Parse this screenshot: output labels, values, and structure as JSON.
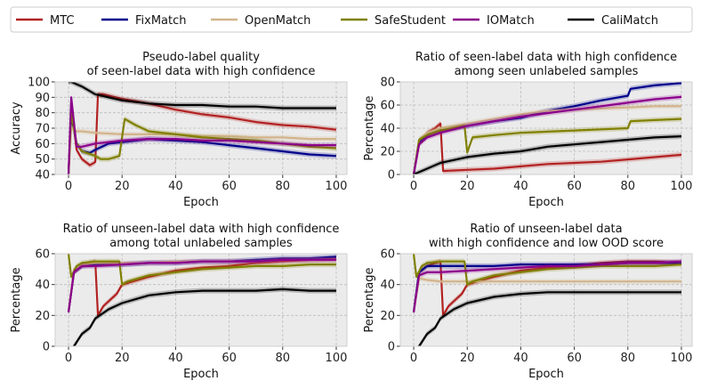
{
  "legend": {
    "position": "top",
    "entries": [
      {
        "name": "MTC",
        "color": "#b22222"
      },
      {
        "name": "FixMatch",
        "color": "#00008b"
      },
      {
        "name": "OpenMatch",
        "color": "#d2b48c"
      },
      {
        "name": "SafeStudent",
        "color": "#808000"
      },
      {
        "name": "IOMatch",
        "color": "#8b008b"
      },
      {
        "name": "CaliMatch",
        "color": "#000000"
      }
    ]
  },
  "chart_data": [
    {
      "type": "line",
      "title_lines": [
        "Pseudo-label quality",
        "of seen-label data with high confidence"
      ],
      "xlabel": "Epoch",
      "ylabel": "Accuracy",
      "xlim": [
        -5,
        104
      ],
      "ylim": [
        40,
        100
      ],
      "xticks": [
        0,
        20,
        40,
        60,
        80,
        100
      ],
      "yticks": [
        40,
        50,
        60,
        70,
        80,
        90,
        100
      ],
      "grid": true,
      "series": [
        {
          "name": "MTC",
          "x": [
            0,
            1,
            3,
            5,
            8,
            10,
            11,
            13,
            20,
            30,
            40,
            50,
            60,
            70,
            80,
            90,
            100
          ],
          "y": [
            40,
            84,
            56,
            50,
            46,
            48,
            92,
            92,
            89,
            86,
            82,
            79,
            77,
            74,
            72,
            71,
            69
          ]
        },
        {
          "name": "FixMatch",
          "x": [
            0,
            1,
            3,
            5,
            8,
            10,
            15,
            20,
            30,
            40,
            50,
            60,
            70,
            80,
            90,
            100
          ],
          "y": [
            40,
            78,
            60,
            55,
            54,
            56,
            60,
            61,
            63,
            62,
            61,
            59,
            57,
            55,
            53,
            52
          ]
        },
        {
          "name": "OpenMatch",
          "x": [
            0,
            1,
            3,
            5,
            10,
            20,
            30,
            40,
            50,
            60,
            70,
            80,
            90,
            100
          ],
          "y": [
            40,
            70,
            68,
            68,
            67,
            66,
            66,
            66,
            65,
            65,
            64,
            64,
            63,
            63
          ]
        },
        {
          "name": "SafeStudent",
          "x": [
            0,
            1,
            3,
            5,
            10,
            12,
            15,
            19,
            21,
            25,
            30,
            40,
            50,
            60,
            70,
            80,
            90,
            100
          ],
          "y": [
            40,
            80,
            60,
            55,
            52,
            50,
            50,
            52,
            76,
            72,
            68,
            66,
            64,
            63,
            62,
            60,
            58,
            57
          ]
        },
        {
          "name": "IOMatch",
          "x": [
            0,
            1,
            3,
            5,
            10,
            20,
            30,
            40,
            50,
            60,
            70,
            80,
            90,
            100
          ],
          "y": [
            40,
            90,
            58,
            58,
            60,
            62,
            63,
            63,
            62,
            62,
            61,
            60,
            59,
            59
          ]
        },
        {
          "name": "CaliMatch",
          "x": [
            0,
            1,
            5,
            10,
            20,
            30,
            40,
            50,
            60,
            70,
            80,
            90,
            100
          ],
          "y": [
            100,
            100,
            97,
            92,
            88,
            86,
            85,
            85,
            84,
            84,
            83,
            83,
            83
          ]
        }
      ]
    },
    {
      "type": "line",
      "title_lines": [
        "Ratio of seen-label data with high confidence",
        "among seen unlabeled samples"
      ],
      "xlabel": "Epoch",
      "ylabel": "Percentage",
      "xlim": [
        -5,
        104
      ],
      "ylim": [
        0,
        80
      ],
      "xticks": [
        0,
        20,
        40,
        60,
        80,
        100
      ],
      "yticks": [
        0,
        20,
        40,
        60,
        80
      ],
      "grid": true,
      "series": [
        {
          "name": "MTC",
          "x": [
            0,
            2,
            5,
            8,
            10,
            11,
            20,
            30,
            40,
            50,
            60,
            70,
            80,
            90,
            100
          ],
          "y": [
            0,
            26,
            36,
            40,
            44,
            3,
            4,
            5,
            7,
            9,
            10,
            11,
            13,
            15,
            17
          ]
        },
        {
          "name": "FixMatch",
          "x": [
            0,
            2,
            5,
            10,
            20,
            30,
            40,
            50,
            60,
            70,
            80,
            81,
            90,
            100
          ],
          "y": [
            0,
            28,
            34,
            38,
            42,
            46,
            49,
            55,
            59,
            64,
            68,
            74,
            77,
            79
          ]
        },
        {
          "name": "OpenMatch",
          "x": [
            0,
            2,
            5,
            10,
            20,
            30,
            40,
            50,
            60,
            70,
            80,
            90,
            100
          ],
          "y": [
            0,
            30,
            36,
            40,
            44,
            48,
            52,
            55,
            56,
            57,
            58,
            59,
            59
          ]
        },
        {
          "name": "SafeStudent",
          "x": [
            0,
            2,
            5,
            10,
            19,
            20,
            22,
            30,
            40,
            50,
            60,
            70,
            80,
            81,
            90,
            100
          ],
          "y": [
            0,
            30,
            34,
            38,
            42,
            19,
            32,
            34,
            36,
            37,
            38,
            39,
            40,
            46,
            47,
            48
          ]
        },
        {
          "name": "IOMatch",
          "x": [
            0,
            2,
            5,
            10,
            20,
            30,
            40,
            50,
            60,
            70,
            80,
            90,
            100
          ],
          "y": [
            0,
            26,
            32,
            36,
            42,
            46,
            50,
            53,
            56,
            59,
            62,
            65,
            67
          ]
        },
        {
          "name": "CaliMatch",
          "x": [
            0,
            5,
            10,
            20,
            30,
            40,
            50,
            60,
            70,
            80,
            90,
            100
          ],
          "y": [
            0,
            5,
            10,
            15,
            18,
            20,
            24,
            26,
            28,
            30,
            32,
            33
          ]
        }
      ]
    },
    {
      "type": "line",
      "title_lines": [
        "Ratio of unseen-label data with high confidence",
        "among total unlabeled samples"
      ],
      "xlabel": "Epoch",
      "ylabel": "Percentage",
      "xlim": [
        -5,
        104
      ],
      "ylim": [
        0,
        60
      ],
      "xticks": [
        0,
        20,
        40,
        60,
        80,
        100
      ],
      "yticks": [
        0,
        20,
        40,
        60
      ],
      "grid": true,
      "series": [
        {
          "name": "MTC",
          "x": [
            0,
            2,
            5,
            8,
            10,
            11,
            13,
            18,
            20,
            30,
            40,
            50,
            60,
            70,
            80,
            90,
            100
          ],
          "y": [
            22,
            48,
            52,
            54,
            55,
            20,
            26,
            34,
            40,
            45,
            49,
            51,
            52,
            54,
            55,
            56,
            57
          ]
        },
        {
          "name": "FixMatch",
          "x": [
            0,
            2,
            5,
            10,
            20,
            30,
            40,
            50,
            60,
            70,
            80,
            90,
            100
          ],
          "y": [
            22,
            48,
            52,
            53,
            53,
            54,
            54,
            55,
            55,
            56,
            57,
            57,
            58
          ]
        },
        {
          "name": "OpenMatch",
          "x": [
            0,
            2,
            5,
            10,
            20,
            30,
            40,
            50,
            60,
            70,
            80,
            90,
            100
          ],
          "y": [
            22,
            50,
            53,
            54,
            54,
            54,
            55,
            55,
            55,
            55,
            56,
            56,
            56
          ]
        },
        {
          "name": "SafeStudent",
          "x": [
            0,
            1,
            3,
            5,
            10,
            19,
            20,
            22,
            30,
            40,
            50,
            60,
            70,
            80,
            90,
            100
          ],
          "y": [
            60,
            45,
            52,
            54,
            55,
            55,
            40,
            42,
            46,
            48,
            50,
            51,
            52,
            52,
            53,
            53
          ]
        },
        {
          "name": "IOMatch",
          "x": [
            0,
            2,
            5,
            10,
            20,
            30,
            40,
            50,
            60,
            70,
            80,
            90,
            100
          ],
          "y": [
            22,
            48,
            52,
            52,
            53,
            54,
            54,
            55,
            55,
            55,
            56,
            56,
            56
          ]
        },
        {
          "name": "CaliMatch",
          "x": [
            0,
            2,
            5,
            8,
            10,
            15,
            20,
            30,
            40,
            50,
            60,
            70,
            80,
            90,
            100
          ],
          "y": [
            -6,
            0,
            8,
            12,
            18,
            24,
            28,
            33,
            35,
            36,
            36,
            36,
            37,
            36,
            36
          ]
        }
      ]
    },
    {
      "type": "line",
      "title_lines": [
        "Ratio of unseen-label data",
        "with high confidence and low OOD score"
      ],
      "xlabel": "Epoch",
      "ylabel": "Percentage",
      "xlim": [
        -5,
        104
      ],
      "ylim": [
        0,
        60
      ],
      "xticks": [
        0,
        20,
        40,
        60,
        80,
        100
      ],
      "yticks": [
        0,
        20,
        40,
        60
      ],
      "grid": true,
      "series": [
        {
          "name": "MTC",
          "x": [
            0,
            2,
            5,
            8,
            10,
            11,
            13,
            18,
            20,
            30,
            40,
            50,
            60,
            70,
            80,
            90,
            100
          ],
          "y": [
            22,
            48,
            52,
            54,
            55,
            20,
            26,
            34,
            40,
            45,
            49,
            51,
            52,
            54,
            55,
            55,
            54
          ]
        },
        {
          "name": "FixMatch",
          "x": [
            0,
            2,
            5,
            10,
            20,
            30,
            40,
            50,
            60,
            70,
            80,
            90,
            100
          ],
          "y": [
            22,
            48,
            52,
            52,
            52,
            52,
            53,
            53,
            53,
            53,
            54,
            54,
            54
          ]
        },
        {
          "name": "OpenMatch",
          "x": [
            0,
            2,
            5,
            10,
            20,
            30,
            40,
            50,
            60,
            70,
            80,
            90,
            100
          ],
          "y": [
            22,
            44,
            43,
            42,
            42,
            42,
            42,
            42,
            42,
            42,
            42,
            42,
            42
          ]
        },
        {
          "name": "SafeStudent",
          "x": [
            0,
            1,
            3,
            5,
            10,
            19,
            20,
            22,
            30,
            40,
            50,
            60,
            70,
            80,
            90,
            100
          ],
          "y": [
            60,
            45,
            52,
            54,
            55,
            55,
            40,
            42,
            46,
            48,
            50,
            51,
            52,
            52,
            52,
            53
          ]
        },
        {
          "name": "IOMatch",
          "x": [
            0,
            2,
            5,
            10,
            20,
            30,
            40,
            50,
            60,
            70,
            80,
            90,
            100
          ],
          "y": [
            22,
            46,
            48,
            48,
            49,
            50,
            51,
            52,
            52,
            53,
            54,
            54,
            55
          ]
        },
        {
          "name": "CaliMatch",
          "x": [
            0,
            2,
            5,
            8,
            10,
            15,
            20,
            30,
            40,
            50,
            60,
            70,
            80,
            90,
            100
          ],
          "y": [
            -6,
            0,
            8,
            12,
            18,
            24,
            28,
            32,
            34,
            35,
            35,
            35,
            35,
            35,
            35
          ]
        }
      ]
    }
  ]
}
